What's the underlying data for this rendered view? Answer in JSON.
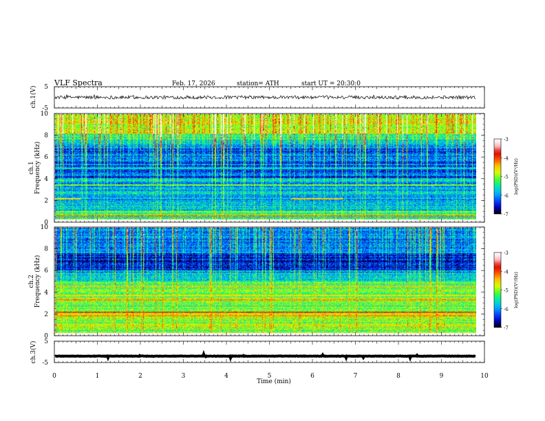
{
  "header": {
    "title": "VLF Spectra",
    "date": "Feb. 17, 2026",
    "station": "station= ATH",
    "start": "start UT =  20:30:0"
  },
  "colors": {
    "colormap": [
      "#000000",
      "#0000c8",
      "#0050ff",
      "#00b4ff",
      "#00e6b4",
      "#3cff3c",
      "#d2ff00",
      "#ffc800",
      "#ff5000",
      "#dc0000",
      "#ffc8c8",
      "#ffffff"
    ]
  },
  "chart_data": [
    {
      "id": "ch1-waveform",
      "type": "line",
      "ylabel": "ch.1(V)",
      "ylim": [
        -5,
        5
      ],
      "yticks": [
        "5",
        "-5"
      ],
      "xlim": [
        0,
        10
      ],
      "series": [
        {
          "level": 0,
          "amplitude": 0.8
        }
      ]
    },
    {
      "id": "ch1-spectrogram",
      "type": "heatmap",
      "ylabel": "ch.1\nFrequency (kHz)",
      "ylim": [
        0,
        10
      ],
      "yticks": [
        "0",
        "2",
        "4",
        "6",
        "8",
        "10"
      ],
      "xlim": [
        0,
        9.8
      ],
      "colorbar": {
        "label": "log(PSD)(V²/Hz)",
        "range": [
          -7,
          -3
        ],
        "ticks": [
          "-3",
          "-4",
          "-5",
          "-6",
          "-7"
        ]
      },
      "bands": [
        {
          "f": 0.15,
          "value": -3.0
        },
        {
          "f": 0.5,
          "value": -4.2
        },
        {
          "f": 2.1,
          "value": -4.5,
          "t_start": 5.5,
          "t_end": 6.7
        },
        {
          "f": 2.1,
          "value": -4.6,
          "t_start": 0,
          "t_end": 0.6
        },
        {
          "f": 3.4,
          "value": -5.0
        },
        {
          "f": 5.0,
          "value": -5.6
        }
      ]
    },
    {
      "id": "ch2-spectrogram",
      "type": "heatmap",
      "ylabel": "ch.2\nFrequency (kHz)",
      "ylim": [
        0,
        10
      ],
      "yticks": [
        "0",
        "2",
        "4",
        "6",
        "8",
        "10"
      ],
      "xlim": [
        0,
        9.8
      ],
      "colorbar": {
        "label": "log(PSD)(V²/Hz)",
        "range": [
          -7,
          -3
        ],
        "ticks": [
          "-3",
          "-4",
          "-5",
          "-6",
          "-7"
        ]
      },
      "bands": [
        {
          "f": 0.15,
          "value": -3.0
        },
        {
          "f": 1.8,
          "value": -4.3
        },
        {
          "f": 2.1,
          "value": -4.0
        },
        {
          "f": 3.3,
          "value": -4.3
        },
        {
          "f": 3.7,
          "value": -4.6
        },
        {
          "f": 4.6,
          "value": -4.5
        }
      ]
    },
    {
      "id": "ch3-waveform",
      "type": "line",
      "ylabel": "ch.3(V)",
      "ylim": [
        -5,
        5
      ],
      "yticks": [
        "5",
        "-5"
      ],
      "xlim": [
        0,
        10
      ],
      "series": [
        {
          "level": -2.0,
          "amplitude": 0.1
        }
      ]
    }
  ],
  "xaxis": {
    "label": "Time (min)",
    "range": [
      0,
      10
    ],
    "ticks": [
      "0",
      "1",
      "2",
      "3",
      "4",
      "5",
      "6",
      "7",
      "8",
      "9",
      "10"
    ]
  }
}
